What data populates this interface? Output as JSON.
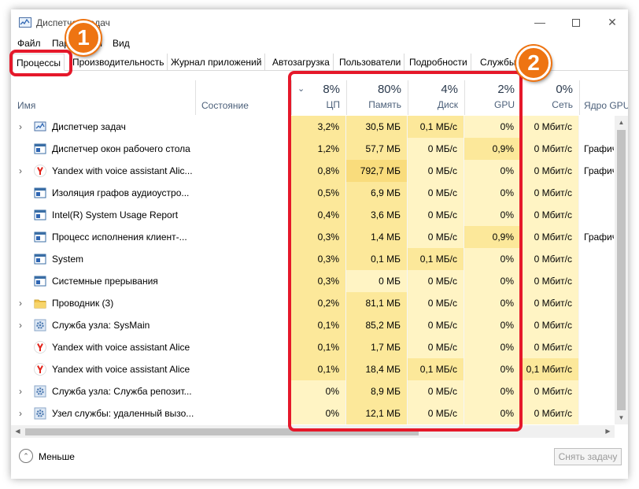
{
  "window": {
    "title": "Диспетчер задач"
  },
  "menu": [
    "Файл",
    "Параметры",
    "Вид"
  ],
  "tabs": [
    "Процессы",
    "Производительность",
    "Журнал приложений",
    "Автозагрузка",
    "Пользователи",
    "Подробности",
    "Службы"
  ],
  "columns": {
    "name": "Имя",
    "status": "Состояние",
    "cpu": {
      "pct": "8%",
      "label": "ЦП"
    },
    "memory": {
      "pct": "80%",
      "label": "Память"
    },
    "disk": {
      "pct": "4%",
      "label": "Диск"
    },
    "gpu": {
      "pct": "2%",
      "label": "GPU"
    },
    "network": {
      "pct": "0%",
      "label": "Сеть"
    },
    "gpu_engine": "Ядро GPU"
  },
  "rows": [
    {
      "name": "Диспетчер задач",
      "expandable": true,
      "icon": "task-manager-icon",
      "cpu": "3,2%",
      "memory": "30,5 МБ",
      "disk": "0,1 МБ/с",
      "gpu": "0%",
      "network": "0 Мбит/с",
      "gpu_engine": ""
    },
    {
      "name": "Диспетчер окон рабочего стола",
      "expandable": false,
      "icon": "window-app-icon",
      "cpu": "1,2%",
      "memory": "57,7 МБ",
      "disk": "0 МБ/с",
      "gpu": "0,9%",
      "network": "0 Мбит/с",
      "gpu_engine": "Графич"
    },
    {
      "name": "Yandex with voice assistant Alic...",
      "expandable": true,
      "icon": "yandex-icon",
      "cpu": "0,8%",
      "memory": "792,7 МБ",
      "disk": "0 МБ/с",
      "gpu": "0%",
      "network": "0 Мбит/с",
      "gpu_engine": "Графич"
    },
    {
      "name": "Изоляция графов аудиоустро...",
      "expandable": false,
      "icon": "window-app-icon",
      "cpu": "0,5%",
      "memory": "6,9 МБ",
      "disk": "0 МБ/с",
      "gpu": "0%",
      "network": "0 Мбит/с",
      "gpu_engine": ""
    },
    {
      "name": "Intel(R) System Usage Report",
      "expandable": false,
      "icon": "window-app-icon",
      "cpu": "0,4%",
      "memory": "3,6 МБ",
      "disk": "0 МБ/с",
      "gpu": "0%",
      "network": "0 Мбит/с",
      "gpu_engine": ""
    },
    {
      "name": "Процесс исполнения клиент-...",
      "expandable": false,
      "icon": "window-app-icon",
      "cpu": "0,3%",
      "memory": "1,4 МБ",
      "disk": "0 МБ/с",
      "gpu": "0,9%",
      "network": "0 Мбит/с",
      "gpu_engine": "Графич"
    },
    {
      "name": "System",
      "expandable": false,
      "icon": "window-app-icon",
      "cpu": "0,3%",
      "memory": "0,1 МБ",
      "disk": "0,1 МБ/с",
      "gpu": "0%",
      "network": "0 Мбит/с",
      "gpu_engine": ""
    },
    {
      "name": "Системные прерывания",
      "expandable": false,
      "icon": "window-app-icon",
      "cpu": "0,3%",
      "memory": "0 МБ",
      "disk": "0 МБ/с",
      "gpu": "0%",
      "network": "0 Мбит/с",
      "gpu_engine": ""
    },
    {
      "name": "Проводник (3)",
      "expandable": true,
      "icon": "folder-icon",
      "cpu": "0,2%",
      "memory": "81,1 МБ",
      "disk": "0 МБ/с",
      "gpu": "0%",
      "network": "0 Мбит/с",
      "gpu_engine": ""
    },
    {
      "name": "Служба узла: SysMain",
      "expandable": true,
      "icon": "gear-service-icon",
      "cpu": "0,1%",
      "memory": "85,2 МБ",
      "disk": "0 МБ/с",
      "gpu": "0%",
      "network": "0 Мбит/с",
      "gpu_engine": ""
    },
    {
      "name": "Yandex with voice assistant Alice",
      "expandable": false,
      "icon": "yandex-icon",
      "cpu": "0,1%",
      "memory": "1,7 МБ",
      "disk": "0 МБ/с",
      "gpu": "0%",
      "network": "0 Мбит/с",
      "gpu_engine": ""
    },
    {
      "name": "Yandex with voice assistant Alice",
      "expandable": false,
      "icon": "yandex-icon",
      "cpu": "0,1%",
      "memory": "18,4 МБ",
      "disk": "0,1 МБ/с",
      "gpu": "0%",
      "network": "0,1 Мбит/с",
      "gpu_engine": ""
    },
    {
      "name": "Служба узла: Служба репозит...",
      "expandable": true,
      "icon": "gear-service-icon",
      "cpu": "0%",
      "memory": "8,9 МБ",
      "disk": "0 МБ/с",
      "gpu": "0%",
      "network": "0 Мбит/с",
      "gpu_engine": ""
    },
    {
      "name": "Узел службы: удаленный вызо...",
      "expandable": true,
      "icon": "gear-service-icon",
      "cpu": "0%",
      "memory": "12,1 МБ",
      "disk": "0 МБ/с",
      "gpu": "0%",
      "network": "0 Мбит/с",
      "gpu_engine": ""
    }
  ],
  "footer": {
    "less_label": "Меньше",
    "end_task_label": "Снять задачу"
  },
  "callouts": {
    "badge1": "1",
    "badge2": "2"
  },
  "colors": {
    "heat_light": "#fff4c4",
    "heat_mid": "#fce89a",
    "heat_high": "#f9dc7c",
    "callout_border": "#e5182a",
    "badge_fill": "#ee7412"
  }
}
